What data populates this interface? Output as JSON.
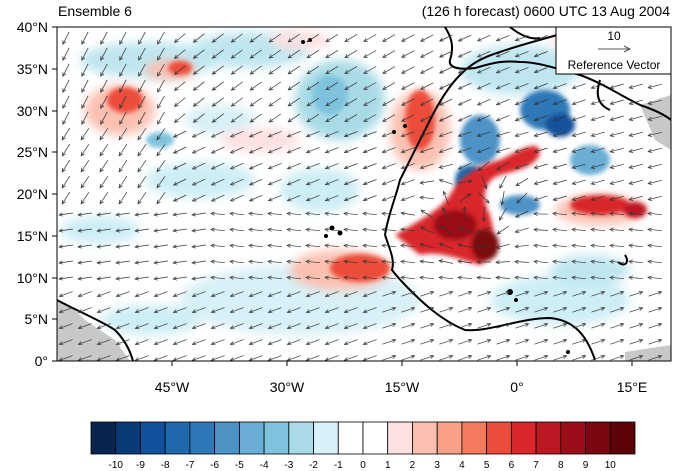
{
  "header": {
    "left_title": "Ensemble 6",
    "right_title": "(126 h forecast) 0600 UTC 13 Aug 2004"
  },
  "map": {
    "lat_ticks": [
      "40°N",
      "35°N",
      "30°N",
      "25°N",
      "20°N",
      "15°N",
      "10°N",
      "5°N",
      "0°"
    ],
    "lon_ticks": [
      "45°W",
      "30°W",
      "15°W",
      "0°",
      "15°E"
    ],
    "land_outline_color": "#000000",
    "missing_area_color": "#c8c8c8"
  },
  "reference_vector": {
    "magnitude": "10",
    "label": "Reference Vector"
  },
  "colorbar": {
    "labels": [
      "-10",
      "-9",
      "-8",
      "-7",
      "-6",
      "-5",
      "-4",
      "-3",
      "-2",
      "-1",
      "0",
      "1",
      "2",
      "3",
      "4",
      "5",
      "6",
      "7",
      "8",
      "9",
      "10"
    ],
    "colors": [
      "#08254f",
      "#0b3a78",
      "#12519b",
      "#1f6aad",
      "#2e78b8",
      "#4d93c6",
      "#6aaed5",
      "#7fc2dd",
      "#a8dbe6",
      "#d8f0f7",
      "#ffffff",
      "#ffffff",
      "#fde0e0",
      "#fbc0b0",
      "#f9a088",
      "#f47a5e",
      "#ec4d3a",
      "#d9262b",
      "#bc1823",
      "#9a0d19",
      "#7a0710",
      "#5c0309"
    ]
  }
}
